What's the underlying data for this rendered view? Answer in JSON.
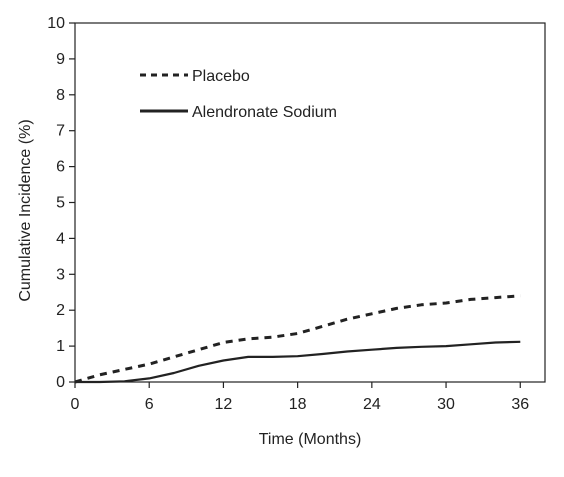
{
  "chart_data": {
    "type": "line",
    "title": "",
    "xlabel": "Time (Months)",
    "ylabel": "Cumulative Incidence (%)",
    "xlim": [
      0,
      38
    ],
    "ylim": [
      0,
      10
    ],
    "xticks": [
      0,
      6,
      12,
      18,
      24,
      30,
      36
    ],
    "yticks": [
      0,
      1,
      2,
      3,
      4,
      5,
      6,
      7,
      8,
      9,
      10
    ],
    "grid": false,
    "legend_position": "top-left",
    "series": [
      {
        "name": "Placebo",
        "style": "dashed",
        "color": "#222222",
        "points": [
          [
            0,
            0
          ],
          [
            2,
            0.2
          ],
          [
            4,
            0.35
          ],
          [
            6,
            0.5
          ],
          [
            8,
            0.7
          ],
          [
            10,
            0.9
          ],
          [
            12,
            1.1
          ],
          [
            14,
            1.2
          ],
          [
            16,
            1.25
          ],
          [
            18,
            1.35
          ],
          [
            20,
            1.55
          ],
          [
            22,
            1.75
          ],
          [
            24,
            1.9
          ],
          [
            26,
            2.05
          ],
          [
            28,
            2.15
          ],
          [
            30,
            2.2
          ],
          [
            32,
            2.3
          ],
          [
            34,
            2.35
          ],
          [
            36,
            2.4
          ]
        ]
      },
      {
        "name": "Alendronate Sodium",
        "style": "solid",
        "color": "#222222",
        "points": [
          [
            0,
            0
          ],
          [
            2,
            0
          ],
          [
            4,
            0.02
          ],
          [
            6,
            0.1
          ],
          [
            8,
            0.25
          ],
          [
            10,
            0.45
          ],
          [
            12,
            0.6
          ],
          [
            14,
            0.7
          ],
          [
            16,
            0.7
          ],
          [
            18,
            0.72
          ],
          [
            20,
            0.78
          ],
          [
            22,
            0.85
          ],
          [
            24,
            0.9
          ],
          [
            26,
            0.95
          ],
          [
            28,
            0.98
          ],
          [
            30,
            1.0
          ],
          [
            32,
            1.05
          ],
          [
            34,
            1.1
          ],
          [
            36,
            1.12
          ]
        ]
      }
    ]
  }
}
